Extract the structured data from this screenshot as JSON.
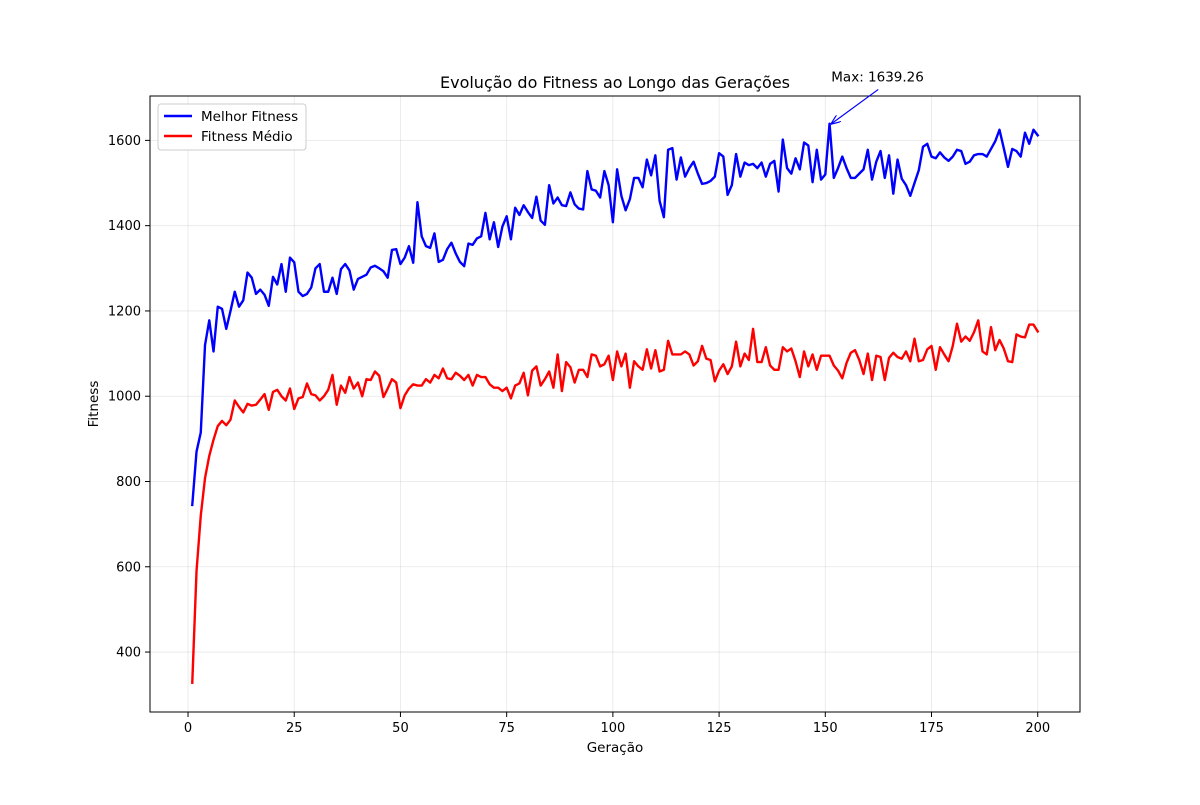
{
  "chart_data": {
    "type": "line",
    "title": "Evolução do Fitness ao Longo das Gerações",
    "xlabel": "Geração",
    "ylabel": "Fitness",
    "xlim": [
      -8.95,
      209.95
    ],
    "ylim": [
      259.4,
      1704.1
    ],
    "xticks": [
      0,
      25,
      50,
      75,
      100,
      125,
      150,
      175,
      200
    ],
    "yticks": [
      400,
      600,
      800,
      1000,
      1200,
      1400,
      1600
    ],
    "grid": true,
    "legend_position": "upper-left",
    "x": [
      1,
      2,
      3,
      4,
      5,
      6,
      7,
      8,
      9,
      10,
      11,
      12,
      13,
      14,
      15,
      16,
      17,
      18,
      19,
      20,
      21,
      22,
      23,
      24,
      25,
      26,
      27,
      28,
      29,
      30,
      31,
      32,
      33,
      34,
      35,
      36,
      37,
      38,
      39,
      40,
      41,
      42,
      43,
      44,
      45,
      46,
      47,
      48,
      49,
      50,
      51,
      52,
      53,
      54,
      55,
      56,
      57,
      58,
      59,
      60,
      61,
      62,
      63,
      64,
      65,
      66,
      67,
      68,
      69,
      70,
      71,
      72,
      73,
      74,
      75,
      76,
      77,
      78,
      79,
      80,
      81,
      82,
      83,
      84,
      85,
      86,
      87,
      88,
      89,
      90,
      91,
      92,
      93,
      94,
      95,
      96,
      97,
      98,
      99,
      100,
      101,
      102,
      103,
      104,
      105,
      106,
      107,
      108,
      109,
      110,
      111,
      112,
      113,
      114,
      115,
      116,
      117,
      118,
      119,
      120,
      121,
      122,
      123,
      124,
      125,
      126,
      127,
      128,
      129,
      130,
      131,
      132,
      133,
      134,
      135,
      136,
      137,
      138,
      139,
      140,
      141,
      142,
      143,
      144,
      145,
      146,
      147,
      148,
      149,
      150,
      151,
      152,
      153,
      154,
      155,
      156,
      157,
      158,
      159,
      160,
      161,
      162,
      163,
      164,
      165,
      166,
      167,
      168,
      169,
      170,
      171,
      172,
      173,
      174,
      175,
      176,
      177,
      178,
      179,
      180,
      181,
      182,
      183,
      184,
      185,
      186,
      187,
      188,
      189,
      190,
      191,
      192,
      193,
      194,
      195,
      196,
      197,
      198,
      199,
      200
    ],
    "series": [
      {
        "name": "Melhor Fitness",
        "color": "#0000ff",
        "values": [
          745,
          870,
          915,
          1120,
          1178,
          1105,
          1210,
          1205,
          1158,
          1200,
          1245,
          1210,
          1225,
          1290,
          1278,
          1240,
          1250,
          1238,
          1212,
          1280,
          1262,
          1310,
          1245,
          1325,
          1314,
          1245,
          1235,
          1240,
          1255,
          1300,
          1310,
          1245,
          1245,
          1278,
          1240,
          1298,
          1310,
          1295,
          1250,
          1275,
          1280,
          1285,
          1302,
          1306,
          1300,
          1293,
          1278,
          1343,
          1345,
          1310,
          1325,
          1352,
          1313,
          1455,
          1375,
          1352,
          1348,
          1382,
          1315,
          1320,
          1345,
          1360,
          1335,
          1315,
          1305,
          1358,
          1355,
          1370,
          1375,
          1430,
          1368,
          1408,
          1350,
          1398,
          1422,
          1368,
          1442,
          1425,
          1448,
          1432,
          1418,
          1468,
          1412,
          1402,
          1495,
          1452,
          1466,
          1448,
          1446,
          1478,
          1450,
          1440,
          1438,
          1528,
          1485,
          1482,
          1466,
          1528,
          1495,
          1408,
          1532,
          1470,
          1436,
          1462,
          1512,
          1512,
          1490,
          1555,
          1518,
          1565,
          1458,
          1420,
          1578,
          1582,
          1508,
          1560,
          1515,
          1535,
          1550,
          1522,
          1498,
          1500,
          1505,
          1515,
          1570,
          1562,
          1472,
          1495,
          1568,
          1515,
          1548,
          1542,
          1545,
          1535,
          1548,
          1515,
          1545,
          1552,
          1480,
          1602,
          1535,
          1522,
          1558,
          1532,
          1595,
          1588,
          1502,
          1578,
          1508,
          1520,
          1639.26,
          1512,
          1535,
          1562,
          1535,
          1512,
          1512,
          1522,
          1532,
          1578,
          1508,
          1550,
          1575,
          1512,
          1565,
          1475,
          1555,
          1510,
          1495,
          1470,
          1500,
          1530,
          1585,
          1592,
          1562,
          1558,
          1572,
          1560,
          1552,
          1562,
          1578,
          1575,
          1545,
          1550,
          1565,
          1568,
          1568,
          1562,
          1580,
          1598,
          1625,
          1582,
          1538,
          1580,
          1575,
          1562,
          1618,
          1592,
          1625,
          1612
        ]
      },
      {
        "name": "Fitness Médio",
        "color": "#ff0000",
        "values": [
          328,
          590,
          720,
          808,
          860,
          898,
          930,
          942,
          932,
          945,
          990,
          975,
          962,
          982,
          978,
          980,
          992,
          1005,
          968,
          1010,
          1015,
          1000,
          990,
          1018,
          970,
          995,
          998,
          1030,
          1005,
          1002,
          990,
          1000,
          1015,
          1050,
          980,
          1025,
          1008,
          1045,
          1018,
          1032,
          1000,
          1040,
          1038,
          1058,
          1048,
          998,
          1018,
          1040,
          1032,
          972,
          1002,
          1018,
          1028,
          1025,
          1025,
          1040,
          1032,
          1050,
          1042,
          1065,
          1042,
          1040,
          1055,
          1048,
          1038,
          1050,
          1025,
          1050,
          1045,
          1045,
          1028,
          1020,
          1020,
          1012,
          1020,
          995,
          1025,
          1030,
          1055,
          1002,
          1060,
          1070,
          1025,
          1040,
          1058,
          1020,
          1098,
          1012,
          1080,
          1068,
          1032,
          1062,
          1062,
          1045,
          1098,
          1095,
          1070,
          1075,
          1095,
          1038,
          1105,
          1070,
          1100,
          1020,
          1082,
          1070,
          1062,
          1110,
          1065,
          1108,
          1058,
          1062,
          1130,
          1098,
          1098,
          1098,
          1105,
          1098,
          1072,
          1082,
          1118,
          1088,
          1085,
          1035,
          1060,
          1075,
          1052,
          1070,
          1128,
          1070,
          1100,
          1085,
          1158,
          1080,
          1080,
          1115,
          1072,
          1062,
          1062,
          1115,
          1105,
          1112,
          1082,
          1045,
          1105,
          1070,
          1098,
          1062,
          1095,
          1095,
          1095,
          1072,
          1060,
          1042,
          1078,
          1102,
          1108,
          1085,
          1052,
          1100,
          1038,
          1095,
          1092,
          1038,
          1090,
          1102,
          1092,
          1088,
          1105,
          1082,
          1135,
          1082,
          1085,
          1110,
          1118,
          1062,
          1115,
          1098,
          1082,
          1118,
          1170,
          1128,
          1140,
          1130,
          1150,
          1178,
          1105,
          1098,
          1162,
          1108,
          1132,
          1112,
          1082,
          1080,
          1145,
          1140,
          1138,
          1168,
          1168,
          1152
        ]
      }
    ],
    "annotation": {
      "text": "Max: 1639.26",
      "x": 151,
      "y": 1639.26,
      "text_x": 154,
      "text_y": 1750
    }
  }
}
